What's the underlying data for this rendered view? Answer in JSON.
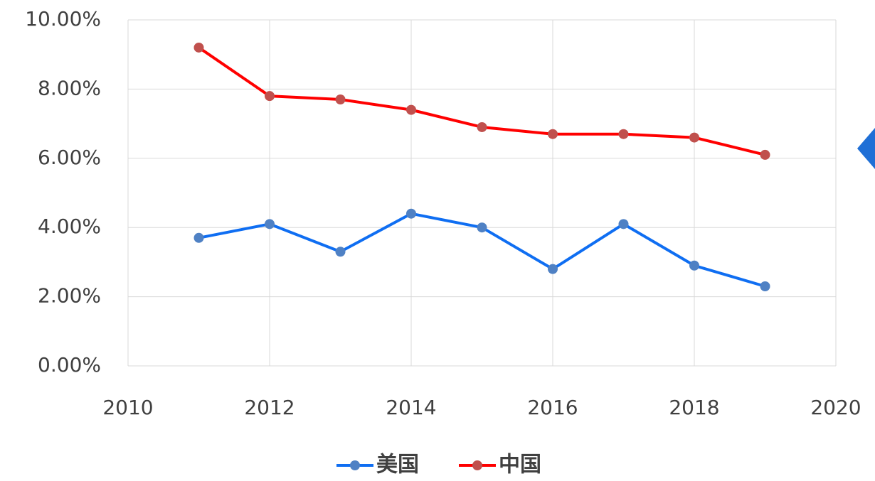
{
  "chart_data": {
    "type": "line",
    "x": [
      2011,
      2012,
      2013,
      2014,
      2015,
      2016,
      2017,
      2018,
      2019
    ],
    "series": [
      {
        "name": "美国",
        "color": "#0f6ef2",
        "marker_color": "#4f81c4",
        "values": [
          3.7,
          4.1,
          3.3,
          4.4,
          4.0,
          2.8,
          4.1,
          2.9,
          2.3
        ]
      },
      {
        "name": "中国",
        "color": "#ff0000",
        "marker_color": "#c0504d",
        "values": [
          9.2,
          7.8,
          7.7,
          7.4,
          6.9,
          6.7,
          6.7,
          6.6,
          6.1
        ]
      }
    ],
    "xlim": [
      2010,
      2020
    ],
    "xticks": [
      2010,
      2012,
      2014,
      2016,
      2018,
      2020
    ],
    "ylim": [
      0,
      10
    ],
    "yticks": [
      {
        "value": 0,
        "label": "0.00%"
      },
      {
        "value": 2,
        "label": "2.00%"
      },
      {
        "value": 4,
        "label": "4.00%"
      },
      {
        "value": 6,
        "label": "6.00%"
      },
      {
        "value": 8,
        "label": "8.00%"
      },
      {
        "value": 10,
        "label": "10.00%"
      }
    ],
    "grid": true,
    "legend": "bottom"
  }
}
